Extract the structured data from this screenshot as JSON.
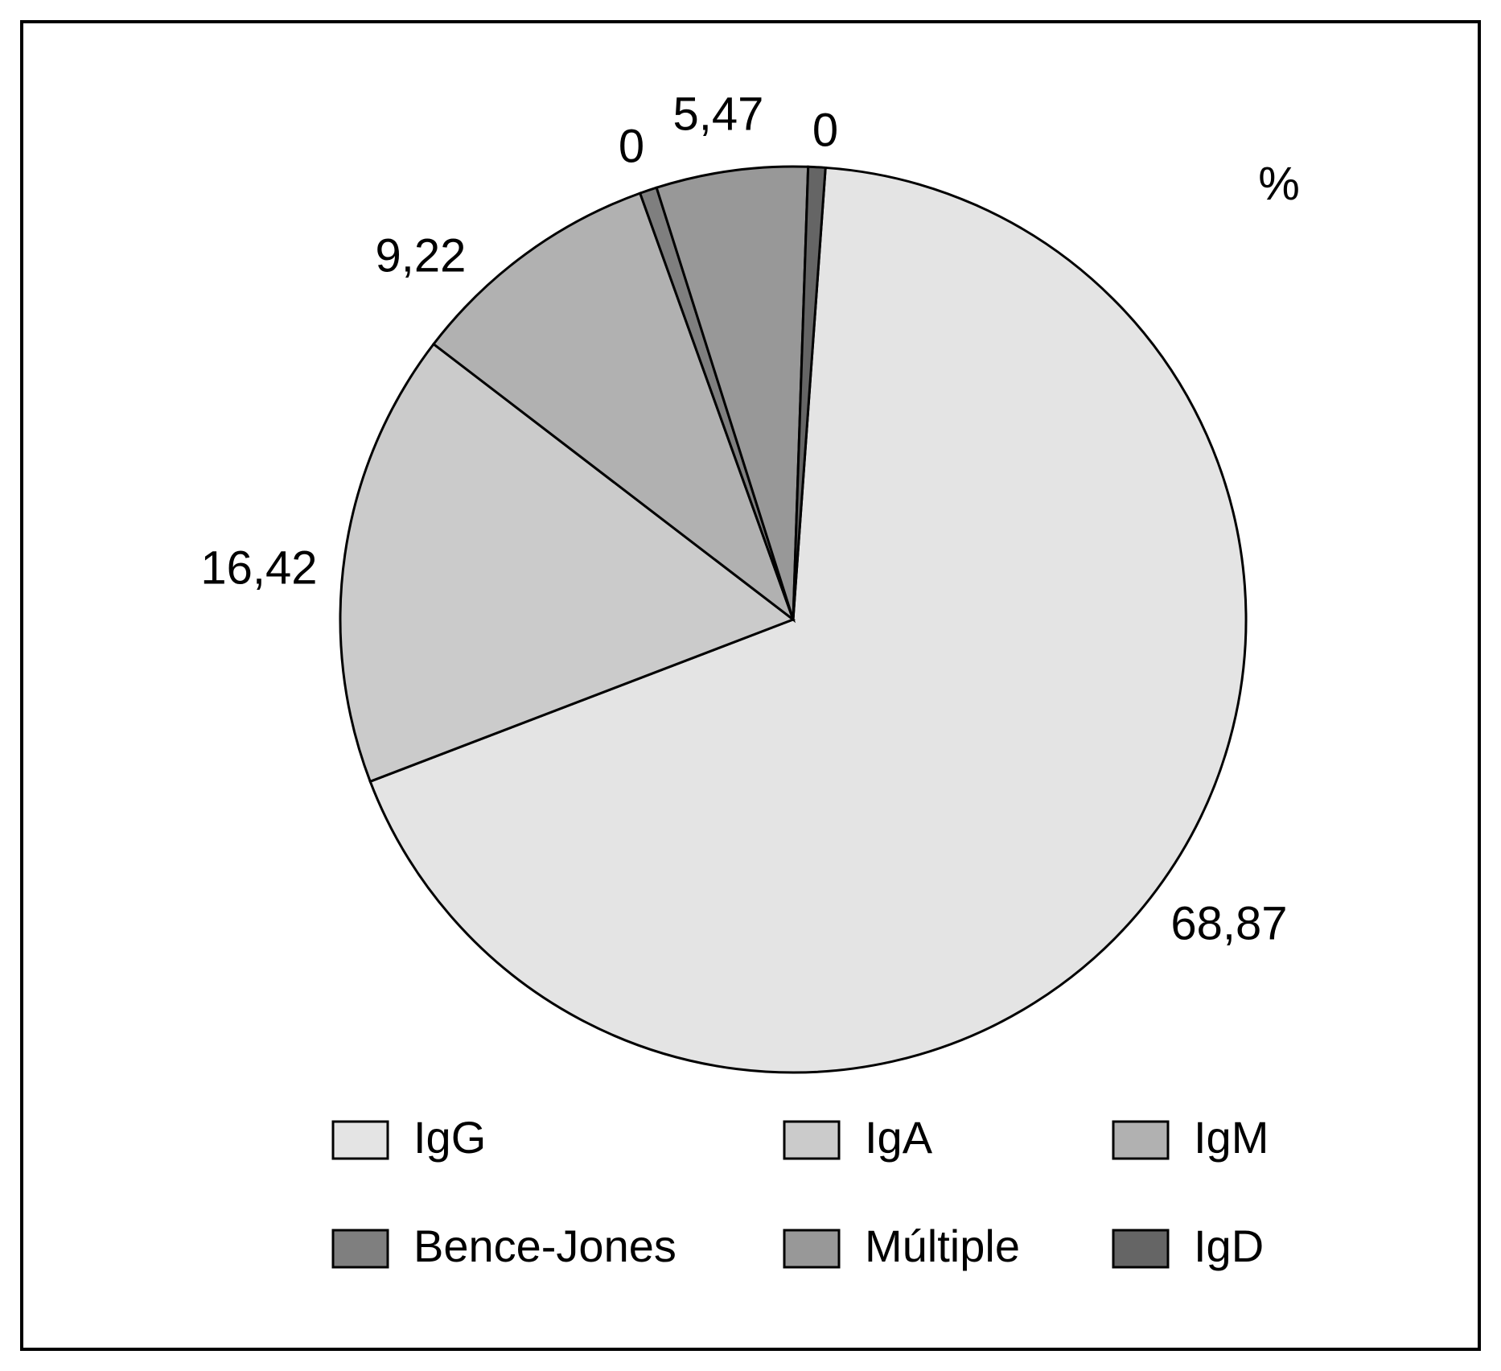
{
  "chart_data": {
    "type": "pie",
    "unit_label": "%",
    "slices": [
      {
        "name": "IgG",
        "value": 68.87,
        "label": "68,87",
        "color": "#e4e4e4"
      },
      {
        "name": "IgA",
        "value": 16.42,
        "label": "16,42",
        "color": "#cbcbcb"
      },
      {
        "name": "IgM",
        "value": 9.22,
        "label": "9,22",
        "color": "#b1b1b1"
      },
      {
        "name": "Bence-Jones",
        "value": 0.0,
        "label": "0",
        "color": "#7f7f7f"
      },
      {
        "name": "Múltiple",
        "value": 5.47,
        "label": "5,47",
        "color": "#989898"
      },
      {
        "name": "IgD",
        "value": 0.0,
        "label": "0",
        "color": "#656565"
      }
    ],
    "legend": {
      "placement": "bottom",
      "columns": 3,
      "entries": [
        "IgG",
        "IgA",
        "IgM",
        "Bence-Jones",
        "Múltiple",
        "IgD"
      ]
    }
  }
}
